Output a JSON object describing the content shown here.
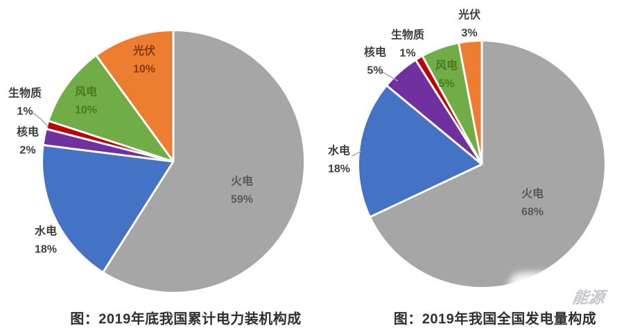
{
  "chart_data": [
    {
      "type": "pie",
      "title": "图：2019年底我国累计电力装机构成",
      "categories": [
        "火电",
        "水电",
        "核电",
        "生物质",
        "风电",
        "光伏"
      ],
      "values": [
        59,
        18,
        2,
        1,
        10,
        10
      ],
      "unit": "%",
      "start_angle_deg": 0,
      "direction": "clockwise",
      "colors": [
        "#a6a6a6",
        "#4472c4",
        "#7030a0",
        "#c00000",
        "#70ad47",
        "#ed7d31"
      ],
      "labels": [
        {
          "text": "火电",
          "value_text": "59%",
          "placement": "inside"
        },
        {
          "text": "水电",
          "value_text": "18%",
          "placement": "outside"
        },
        {
          "text": "核电",
          "value_text": "2%",
          "placement": "outside"
        },
        {
          "text": "生物质",
          "value_text": "1%",
          "placement": "outside"
        },
        {
          "text": "风电",
          "value_text": "10%",
          "placement": "inside"
        },
        {
          "text": "光伏",
          "value_text": "10%",
          "placement": "inside"
        }
      ]
    },
    {
      "type": "pie",
      "title": "图：2019年我国全国发电量构成",
      "categories": [
        "火电",
        "水电",
        "核电",
        "生物质",
        "风电",
        "光伏"
      ],
      "values": [
        68,
        18,
        5,
        1,
        5,
        3
      ],
      "unit": "%",
      "start_angle_deg": 0,
      "direction": "clockwise",
      "colors": [
        "#a6a6a6",
        "#4472c4",
        "#7030a0",
        "#c00000",
        "#70ad47",
        "#ed7d31"
      ],
      "labels": [
        {
          "text": "火电",
          "value_text": "68%",
          "placement": "inside"
        },
        {
          "text": "水电",
          "value_text": "18%",
          "placement": "outside"
        },
        {
          "text": "核电",
          "value_text": "5%",
          "placement": "outside"
        },
        {
          "text": "生物质",
          "value_text": "1%",
          "placement": "outside"
        },
        {
          "text": "风电",
          "value_text": "5%",
          "placement": "inside"
        },
        {
          "text": "光伏",
          "value_text": "3%",
          "placement": "outside"
        }
      ]
    }
  ],
  "watermark": {
    "text": "能源"
  }
}
